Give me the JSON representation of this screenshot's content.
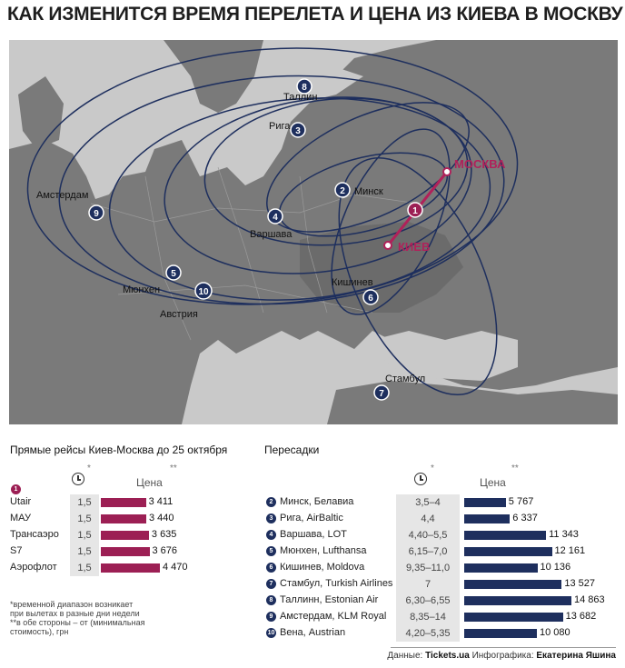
{
  "title": "КАК ИЗМЕНИТСЯ ВРЕМЯ ПЕРЕЛЕТА И ЦЕНА ИЗ КИЕВА В МОСКВУ",
  "map": {
    "destinations": {
      "moscow": "МОСКВА",
      "kiev": "КИЕВ"
    },
    "cities": {
      "tallinn": "Таллин",
      "riga": "Рига",
      "minsk": "Минск",
      "amsterdam": "Амстердам",
      "warsaw": "Варшава",
      "munich": "Мюнхен",
      "austria": "Австрия",
      "chisinau": "Кишинев",
      "istanbul": "Стамбул"
    },
    "markers": [
      "1",
      "2",
      "3",
      "4",
      "5",
      "6",
      "7",
      "8",
      "9",
      "10"
    ],
    "colors": {
      "land": "#7a7a7a",
      "sea": "#c9c9c9",
      "route": "#1e2f5e",
      "direct": "#b0215a"
    }
  },
  "direct": {
    "title": "Прямые рейсы Киев-Москва до 25 октября",
    "marker": "1",
    "time_star": "*",
    "price_star": "**",
    "price_header": "Цена",
    "rows": [
      {
        "airline": "Utair",
        "time": "1,5",
        "price": "3 411",
        "value": 3411
      },
      {
        "airline": "МАУ",
        "time": "1,5",
        "price": "3 440",
        "value": 3440
      },
      {
        "airline": "Трансаэро",
        "time": "1,5",
        "price": "3 635",
        "value": 3635
      },
      {
        "airline": "S7",
        "time": "1,5",
        "price": "3 676",
        "value": 3676
      },
      {
        "airline": "Аэрофлот",
        "time": "1,5",
        "price": "4 470",
        "value": 4470
      }
    ]
  },
  "transfers": {
    "title": "Пересадки",
    "time_star": "*",
    "price_star": "**",
    "price_header": "Цена",
    "rows": [
      {
        "num": "2",
        "route": "Минск, Белавиа",
        "time": "3,5–4",
        "price": "5 767",
        "value": 5767
      },
      {
        "num": "3",
        "route": "Рига, AirBaltic",
        "time": "4,4",
        "price": "6 337",
        "value": 6337
      },
      {
        "num": "4",
        "route": "Варшава, LOT",
        "time": "4,40–5,5",
        "price": "11 343",
        "value": 11343
      },
      {
        "num": "5",
        "route": "Мюнхен, Lufthansa",
        "time": "6,15–7,0",
        "price": "12 161",
        "value": 12161
      },
      {
        "num": "6",
        "route": "Кишинев, Moldova",
        "time": "9,35–11,0",
        "price": "10 136",
        "value": 10136
      },
      {
        "num": "7",
        "route": "Стамбул, Turkish Airlines",
        "time": "7",
        "price": "13 527",
        "value": 13527
      },
      {
        "num": "8",
        "route": "Таллинн, Estonian Air",
        "time": "6,30–6,55",
        "price": "14 863",
        "value": 14863
      },
      {
        "num": "9",
        "route": "Амстердам, KLM Royal",
        "time": "8,35–14",
        "price": "13 682",
        "value": 13682
      },
      {
        "num": "10",
        "route": "Вена, Austrian",
        "time": "4,20–5,35",
        "price": "10 080",
        "value": 10080
      }
    ]
  },
  "footnotes": {
    "time": "*временной диапазон возникает при вылетах в разные дни недели",
    "price": "**в обе стороны – от (минимальная стоимость), грн"
  },
  "credits": {
    "data_label": "Данные: ",
    "data_source": "Tickets.ua",
    "graphics_label": " Инфографика: ",
    "author": "Екатерина Яшина"
  }
}
